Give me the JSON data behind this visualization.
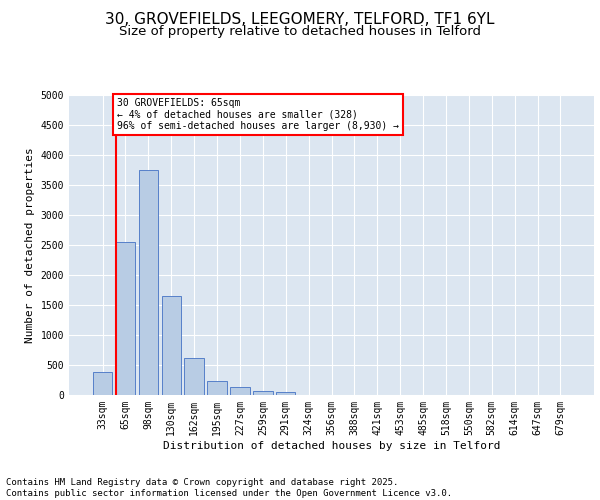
{
  "title1": "30, GROVEFIELDS, LEEGOMERY, TELFORD, TF1 6YL",
  "title2": "Size of property relative to detached houses in Telford",
  "xlabel": "Distribution of detached houses by size in Telford",
  "ylabel": "Number of detached properties",
  "categories": [
    "33sqm",
    "65sqm",
    "98sqm",
    "130sqm",
    "162sqm",
    "195sqm",
    "227sqm",
    "259sqm",
    "291sqm",
    "324sqm",
    "356sqm",
    "388sqm",
    "421sqm",
    "453sqm",
    "485sqm",
    "518sqm",
    "550sqm",
    "582sqm",
    "614sqm",
    "647sqm",
    "679sqm"
  ],
  "values": [
    390,
    2550,
    3750,
    1650,
    620,
    240,
    130,
    60,
    50,
    0,
    0,
    0,
    0,
    0,
    0,
    0,
    0,
    0,
    0,
    0,
    0
  ],
  "bar_color": "#b8cce4",
  "bar_edge_color": "#4472c4",
  "vline_x_idx": 1,
  "vline_color": "#ff0000",
  "annotation_text": "30 GROVEFIELDS: 65sqm\n← 4% of detached houses are smaller (328)\n96% of semi-detached houses are larger (8,930) →",
  "annotation_box_color": "#ffffff",
  "annotation_box_edge": "#ff0000",
  "ylim": [
    0,
    5000
  ],
  "yticks": [
    0,
    500,
    1000,
    1500,
    2000,
    2500,
    3000,
    3500,
    4000,
    4500,
    5000
  ],
  "background_color": "#dce6f1",
  "footer_line1": "Contains HM Land Registry data © Crown copyright and database right 2025.",
  "footer_line2": "Contains public sector information licensed under the Open Government Licence v3.0.",
  "title1_fontsize": 11,
  "title2_fontsize": 9.5,
  "axis_fontsize": 8,
  "tick_fontsize": 7,
  "footer_fontsize": 6.5
}
